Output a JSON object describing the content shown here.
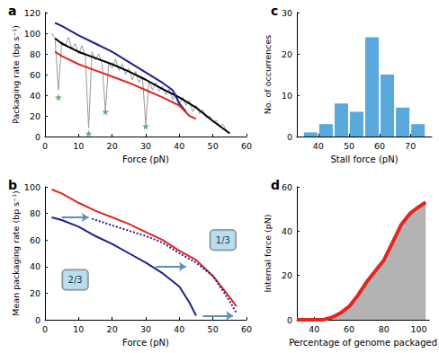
{
  "chart_data": [
    {
      "type": "line",
      "title": "a",
      "xlabel": "Force (pN)",
      "ylabel": "Packaging rate (bp s⁻¹)",
      "xlim": [
        0,
        60
      ],
      "ylim": [
        0,
        120
      ],
      "xticks": [
        0,
        10,
        20,
        30,
        40,
        50,
        60
      ],
      "yticks": [
        0,
        20,
        40,
        60,
        80,
        100,
        120
      ],
      "grid": false,
      "series": [
        {
          "type": "line",
          "color": "#9a9a9a",
          "x": [
            2,
            3,
            4,
            5,
            6,
            7,
            8,
            9,
            10,
            11,
            12,
            13,
            14,
            15,
            16,
            17,
            18,
            19,
            20,
            21,
            22,
            23,
            24,
            25,
            26,
            27,
            28,
            29,
            30,
            31,
            32,
            33,
            34,
            35,
            36,
            37,
            38,
            39,
            40,
            41,
            42,
            43,
            44,
            45,
            46,
            47,
            48,
            49,
            50,
            51,
            52,
            53,
            54,
            55
          ],
          "values": [
            100,
            95,
            45,
            92,
            88,
            96,
            85,
            90,
            80,
            88,
            78,
            8,
            82,
            74,
            80,
            70,
            25,
            72,
            66,
            75,
            64,
            70,
            60,
            66,
            55,
            63,
            52,
            58,
            12,
            54,
            45,
            52,
            44,
            49,
            40,
            46,
            36,
            42,
            32,
            38,
            30,
            35,
            24,
            30,
            22,
            26,
            18,
            20,
            14,
            16,
            10,
            12,
            6,
            3
          ]
        },
        {
          "type": "line",
          "color": "#000000",
          "x": [
            3,
            5,
            10,
            15,
            20,
            25,
            30,
            35,
            40,
            45,
            50,
            55
          ],
          "values": [
            95,
            90,
            82,
            76,
            70,
            63,
            55,
            46,
            38,
            28,
            15,
            3
          ]
        },
        {
          "type": "line",
          "color": "#1f1f8f",
          "x": [
            3,
            5,
            10,
            15,
            20,
            25,
            30,
            35,
            38,
            40,
            42
          ],
          "values": [
            110,
            107,
            98,
            90,
            82,
            72,
            62,
            52,
            45,
            32,
            24
          ]
        },
        {
          "type": "line",
          "color": "#e3261f",
          "x": [
            3,
            5,
            10,
            15,
            20,
            25,
            30,
            35,
            40,
            43,
            45
          ],
          "values": [
            82,
            78,
            70,
            64,
            58,
            52,
            45,
            38,
            30,
            20,
            17
          ]
        },
        {
          "type": "scatter",
          "marker": "star",
          "color": "#2e9e4a",
          "x": [
            4,
            13,
            18,
            30
          ],
          "values": [
            38,
            3,
            24,
            10
          ]
        }
      ]
    },
    {
      "type": "histogram",
      "title": "c",
      "xlabel": "Stall force (pN)",
      "ylabel": "No. of occurrences",
      "xlim": [
        33,
        77
      ],
      "ylim": [
        0,
        30
      ],
      "xticks": [
        40,
        50,
        60,
        70
      ],
      "yticks": [
        0,
        10,
        20,
        30
      ],
      "grid": false,
      "color": "#5aa9dc",
      "bins": [
        35,
        40,
        45,
        50,
        55,
        60,
        65,
        70,
        75
      ],
      "values": [
        1,
        3,
        8,
        6,
        24,
        15,
        7,
        3
      ]
    },
    {
      "type": "line",
      "title": "b",
      "xlabel": "Force (pN)",
      "ylabel": "Mean packaging rate (bp s⁻¹)",
      "xlim": [
        0,
        60
      ],
      "ylim": [
        0,
        100
      ],
      "xticks": [
        0,
        10,
        20,
        30,
        40,
        50,
        60
      ],
      "yticks": [
        0,
        20,
        40,
        60,
        80,
        100
      ],
      "grid": false,
      "series": [
        {
          "type": "line",
          "color": "#e3261f",
          "x": [
            2,
            5,
            10,
            15,
            20,
            25,
            30,
            35,
            40,
            45,
            50,
            55,
            57
          ],
          "values": [
            98,
            95,
            88,
            82,
            77,
            72,
            66,
            60,
            52,
            45,
            33,
            17,
            10
          ]
        },
        {
          "type": "line",
          "color": "#1f1f8f",
          "x": [
            2,
            5,
            10,
            15,
            20,
            25,
            30,
            35,
            40,
            43,
            45
          ],
          "values": [
            77,
            75,
            70,
            63,
            57,
            50,
            43,
            35,
            25,
            13,
            3
          ]
        },
        {
          "type": "line",
          "color": "#1f1f8f",
          "line_style": "dotted",
          "x": [
            14,
            20,
            25,
            30,
            35,
            40,
            45,
            50,
            55,
            57
          ],
          "values": [
            76,
            71,
            67,
            63,
            58,
            50,
            43,
            33,
            14,
            5
          ]
        }
      ],
      "arrows": [
        {
          "from": [
            5,
            77
          ],
          "to": [
            13,
            77
          ]
        },
        {
          "from": [
            33,
            40
          ],
          "to": [
            42,
            40
          ]
        },
        {
          "from": [
            47,
            3
          ],
          "to": [
            56,
            3
          ]
        }
      ],
      "annotations": [
        {
          "text": "2/3",
          "x": 9,
          "y": 30
        },
        {
          "text": "1/3",
          "x": 53,
          "y": 60
        }
      ]
    },
    {
      "type": "area",
      "title": "d",
      "xlabel": "Percentage of genome packaged",
      "ylabel": "Internal force (pN)",
      "xlim": [
        30,
        106
      ],
      "ylim": [
        0,
        60
      ],
      "xticks": [
        40,
        60,
        80,
        100
      ],
      "yticks": [
        0,
        20,
        40,
        60
      ],
      "grid": false,
      "color": "#e3261f",
      "x": [
        30,
        35,
        40,
        45,
        50,
        55,
        60,
        65,
        70,
        75,
        80,
        85,
        90,
        95,
        100,
        104
      ],
      "values": [
        0,
        0,
        0,
        0,
        1,
        3,
        6,
        11,
        17,
        22,
        27,
        35,
        43,
        48,
        51,
        53
      ]
    }
  ]
}
